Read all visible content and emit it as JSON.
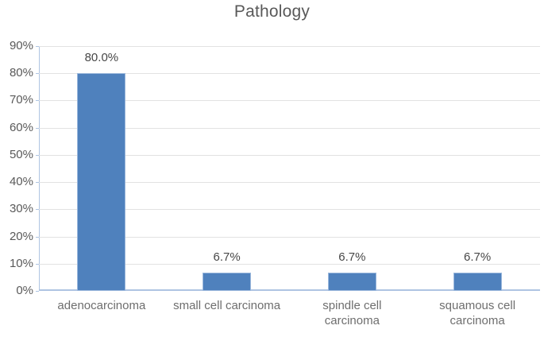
{
  "chart_data": {
    "type": "bar",
    "title": "Pathology",
    "categories": [
      "adenocarcinoma",
      "small cell carcinoma",
      "spindle cell carcinoma",
      "squamous cell carcinoma"
    ],
    "categories_display": [
      "adenocarcinoma",
      "small cell carcinoma",
      "spindle cell\ncarcinoma",
      "squamous cell\ncarcinoma"
    ],
    "values": [
      80.0,
      6.7,
      6.7,
      6.7
    ],
    "data_labels": [
      "80.0%",
      "6.7%",
      "6.7%",
      "6.7%"
    ],
    "xlabel": "",
    "ylabel": "",
    "ylim": [
      0,
      90
    ],
    "y_tick_step": 10,
    "y_tick_labels": [
      "0%",
      "10%",
      "20%",
      "30%",
      "40%",
      "50%",
      "60%",
      "70%",
      "80%",
      "90%"
    ],
    "grid": true,
    "legend": "none",
    "colors": {
      "bar_fill": "#4f81bd",
      "bar_border": "#9ab7dc",
      "axis_line": "#aec4e2",
      "gridline": "#e2e2e2",
      "title_text": "#595959",
      "axis_text": "#595959",
      "category_text": "#6e6e6e",
      "data_label_text": "#474747",
      "background": "#ffffff"
    }
  }
}
